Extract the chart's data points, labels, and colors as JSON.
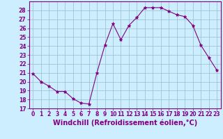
{
  "x": [
    0,
    1,
    2,
    3,
    4,
    5,
    6,
    7,
    8,
    9,
    10,
    11,
    12,
    13,
    14,
    15,
    16,
    17,
    18,
    19,
    20,
    21,
    22,
    23
  ],
  "y": [
    20.9,
    20.0,
    19.5,
    18.9,
    18.9,
    18.1,
    17.6,
    17.5,
    21.0,
    24.1,
    26.5,
    24.7,
    26.3,
    27.2,
    28.3,
    28.3,
    28.3,
    27.9,
    27.5,
    27.3,
    26.3,
    24.1,
    22.7,
    21.3
  ],
  "line_color": "#800080",
  "marker": "*",
  "marker_size": 3.5,
  "bg_color": "#cceeff",
  "grid_color": "#99bbcc",
  "xlabel": "Windchill (Refroidissement éolien,°C)",
  "xlabel_fontsize": 7,
  "ylim": [
    17,
    29
  ],
  "xlim": [
    -0.5,
    23.5
  ],
  "yticks": [
    17,
    18,
    19,
    20,
    21,
    22,
    23,
    24,
    25,
    26,
    27,
    28
  ],
  "xticks": [
    0,
    1,
    2,
    3,
    4,
    5,
    6,
    7,
    8,
    9,
    10,
    11,
    12,
    13,
    14,
    15,
    16,
    17,
    18,
    19,
    20,
    21,
    22,
    23
  ],
  "tick_label_fontsize": 5.5,
  "axis_color": "#800080"
}
